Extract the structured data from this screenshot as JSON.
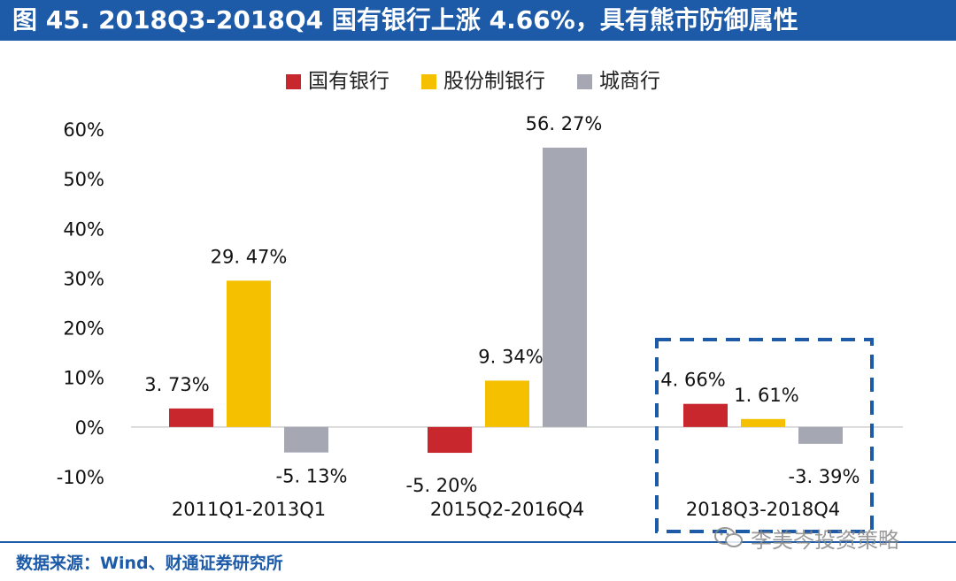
{
  "header": {
    "title": "图 45. 2018Q3-2018Q4 国有银行上涨 4.66%，具有熊市防御属性"
  },
  "footer": {
    "source": "数据来源：Wind、财通证券研究所",
    "watermark": "李美岑投资策略",
    "watermark_icon": "wechat-icon"
  },
  "colors": {
    "title_bar": "#1d5aa8",
    "series": [
      "#c8282d",
      "#f5c000",
      "#a5a8b3"
    ],
    "highlight_box": "#1d5aa8"
  },
  "chart_data": {
    "type": "bar",
    "title": "",
    "xlabel": "",
    "ylabel": "",
    "categories": [
      "2011Q1-2013Q1",
      "2015Q2-2016Q4",
      "2018Q3-2018Q4"
    ],
    "series": [
      {
        "name": "国有银行",
        "values": [
          3.73,
          -5.2,
          4.66
        ],
        "labels": [
          "3. 73%",
          "-5. 20%",
          "4. 66%"
        ]
      },
      {
        "name": "股份制银行",
        "values": [
          29.47,
          9.34,
          1.61
        ],
        "labels": [
          "29. 47%",
          "9. 34%",
          "1. 61%"
        ]
      },
      {
        "name": "城商行",
        "values": [
          -5.13,
          56.27,
          -3.39
        ],
        "labels": [
          "-5. 13%",
          "56. 27%",
          "-3. 39%"
        ]
      }
    ],
    "ylim": [
      -10,
      60
    ],
    "yticks": [
      -10,
      0,
      10,
      20,
      30,
      40,
      50,
      60
    ],
    "ytick_labels": [
      "-10%",
      "0%",
      "10%",
      "20%",
      "30%",
      "40%",
      "50%",
      "60%"
    ],
    "grid": false,
    "legend_position": "top",
    "highlight_category": "2018Q3-2018Q4"
  }
}
